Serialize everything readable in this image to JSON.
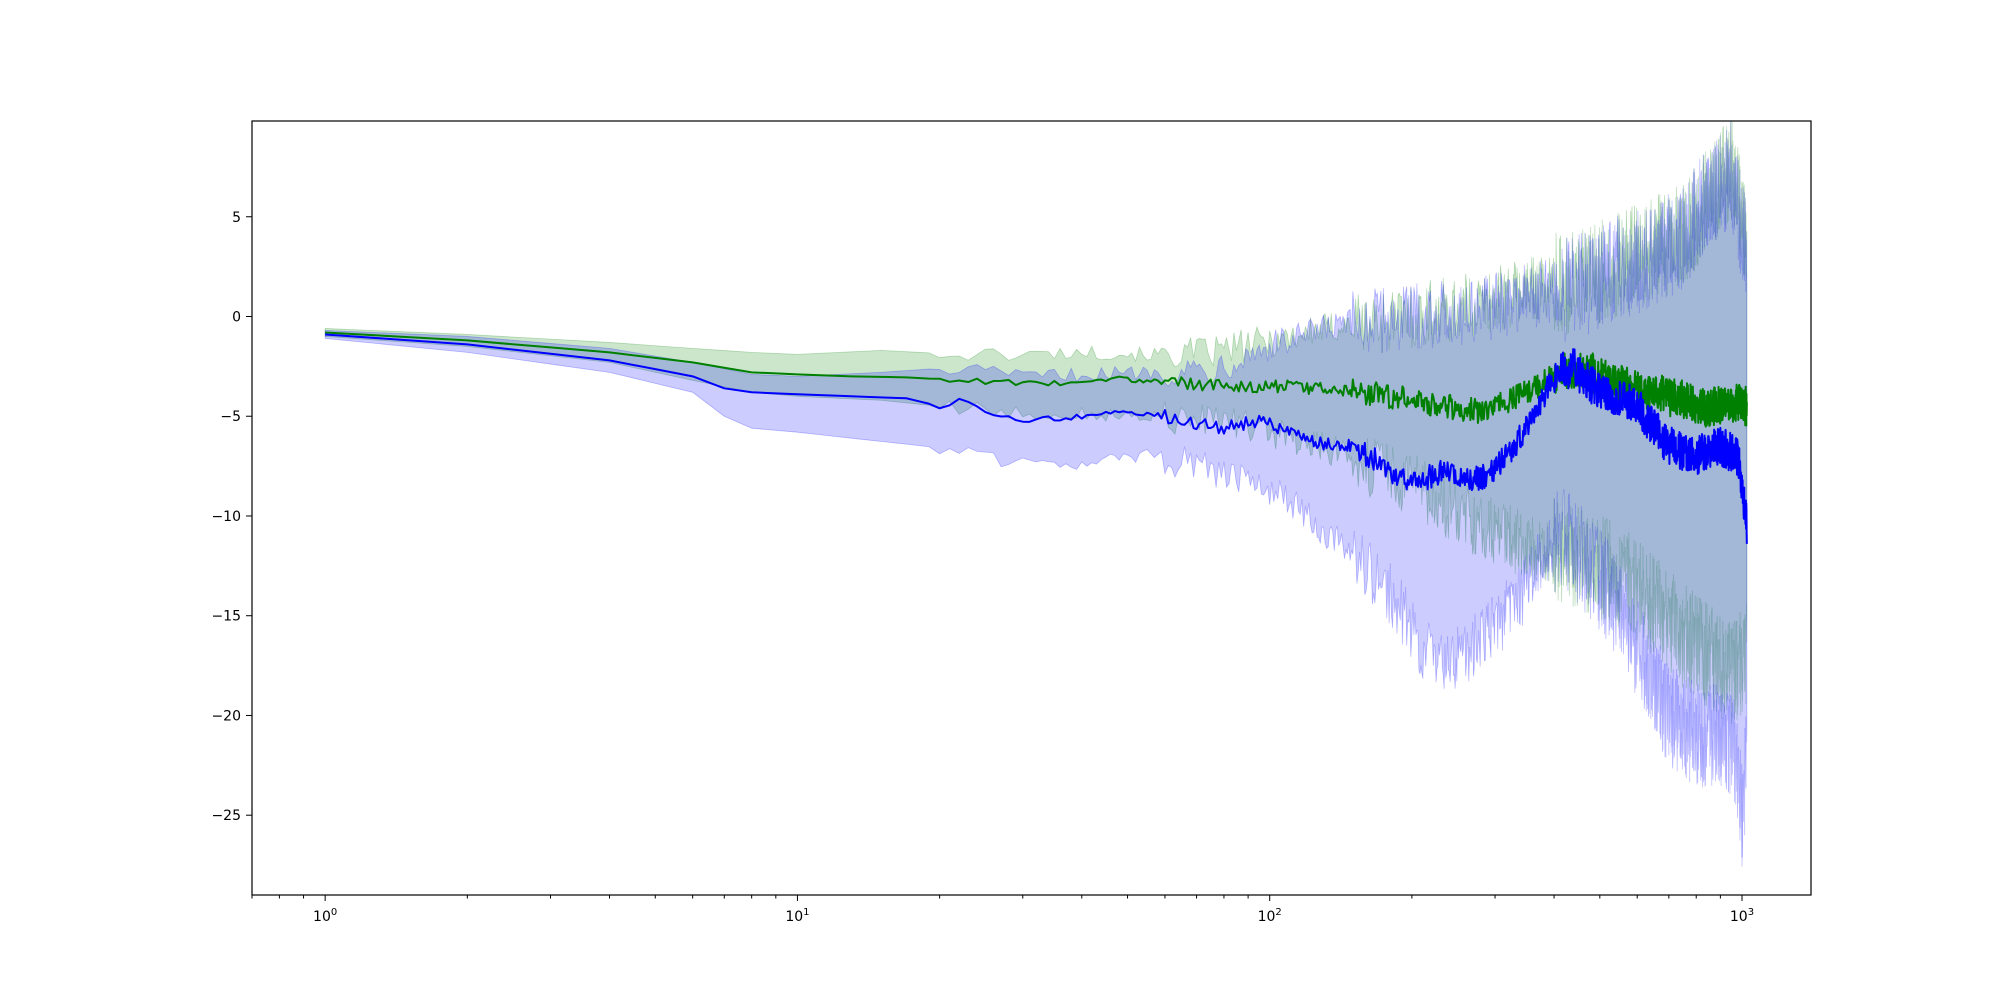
{
  "chart_data": {
    "type": "line",
    "title": "",
    "xlabel": "",
    "ylabel": "",
    "xscale": "log",
    "xlim": [
      0.7,
      1400
    ],
    "ylim": [
      -29,
      9.8
    ],
    "grid": false,
    "legend": "none",
    "x_ticks": [
      {
        "value": 1,
        "base": "10",
        "exp": "0"
      },
      {
        "value": 10,
        "base": "10",
        "exp": "1"
      },
      {
        "value": 100,
        "base": "10",
        "exp": "2"
      },
      {
        "value": 1000,
        "base": "10",
        "exp": "3"
      }
    ],
    "y_ticks": [
      {
        "value": 5,
        "label": "5"
      },
      {
        "value": 0,
        "label": "0"
      },
      {
        "value": -5,
        "label": "−5"
      },
      {
        "value": -10,
        "label": "−10"
      },
      {
        "value": -15,
        "label": "−15"
      },
      {
        "value": -20,
        "label": "−20"
      },
      {
        "value": -25,
        "label": "−25"
      }
    ],
    "series": [
      {
        "key": "green",
        "color": "#008000",
        "band_color": "#008000",
        "band_opacity": 0.2,
        "mean": [
          [
            1,
            -0.8
          ],
          [
            2,
            -1.2
          ],
          [
            4,
            -1.8
          ],
          [
            6,
            -2.3
          ],
          [
            8,
            -2.8
          ],
          [
            10,
            -2.9
          ],
          [
            13,
            -3.0
          ],
          [
            17,
            -3.05
          ],
          [
            22,
            -3.2
          ],
          [
            28,
            -3.3
          ],
          [
            35,
            -3.35
          ],
          [
            43,
            -3.1
          ],
          [
            55,
            -3.2
          ],
          [
            70,
            -3.4
          ],
          [
            90,
            -3.5
          ],
          [
            110,
            -3.5
          ],
          [
            140,
            -3.7
          ],
          [
            170,
            -3.9
          ],
          [
            200,
            -4.2
          ],
          [
            240,
            -4.5
          ],
          [
            280,
            -4.8
          ],
          [
            320,
            -4.3
          ],
          [
            370,
            -3.5
          ],
          [
            420,
            -2.6
          ],
          [
            480,
            -2.8
          ],
          [
            550,
            -3.4
          ],
          [
            650,
            -3.8
          ],
          [
            750,
            -4.2
          ],
          [
            850,
            -4.6
          ],
          [
            950,
            -4.3
          ],
          [
            1024,
            -4.5
          ]
        ],
        "band_upper": [
          [
            1,
            -0.6
          ],
          [
            2,
            -0.9
          ],
          [
            4,
            -1.3
          ],
          [
            6,
            -1.6
          ],
          [
            8,
            -1.8
          ],
          [
            10,
            -1.9
          ],
          [
            15,
            -1.7
          ],
          [
            22,
            -1.9
          ],
          [
            30,
            -1.9
          ],
          [
            40,
            -1.8
          ],
          [
            55,
            -1.9
          ],
          [
            75,
            -1.8
          ],
          [
            100,
            -1.2
          ],
          [
            140,
            -0.5
          ],
          [
            200,
            0.0
          ],
          [
            280,
            0.6
          ],
          [
            350,
            1.4
          ],
          [
            450,
            1.8
          ],
          [
            550,
            2.6
          ],
          [
            650,
            3.4
          ],
          [
            750,
            4.0
          ],
          [
            850,
            6.0
          ],
          [
            950,
            7.5
          ],
          [
            1024,
            4.0
          ]
        ],
        "band_lower": [
          [
            1,
            -1.0
          ],
          [
            2,
            -1.5
          ],
          [
            4,
            -2.3
          ],
          [
            6,
            -3.2
          ],
          [
            8,
            -3.8
          ],
          [
            10,
            -4.0
          ],
          [
            15,
            -4.2
          ],
          [
            22,
            -4.6
          ],
          [
            30,
            -4.8
          ],
          [
            40,
            -4.9
          ],
          [
            55,
            -5.0
          ],
          [
            75,
            -5.2
          ],
          [
            100,
            -5.8
          ],
          [
            140,
            -6.8
          ],
          [
            200,
            -8.5
          ],
          [
            280,
            -10.5
          ],
          [
            350,
            -11.5
          ],
          [
            450,
            -12.0
          ],
          [
            550,
            -13.0
          ],
          [
            650,
            -14.5
          ],
          [
            750,
            -16.0
          ],
          [
            850,
            -17.0
          ],
          [
            950,
            -18.0
          ],
          [
            1024,
            -17.0
          ]
        ]
      },
      {
        "key": "blue",
        "color": "#0000ff",
        "band_color": "#0000ff",
        "band_opacity": 0.2,
        "mean": [
          [
            1,
            -0.9
          ],
          [
            2,
            -1.4
          ],
          [
            4,
            -2.2
          ],
          [
            6,
            -3.0
          ],
          [
            7,
            -3.6
          ],
          [
            8,
            -3.8
          ],
          [
            10,
            -3.9
          ],
          [
            13,
            -4.0
          ],
          [
            17,
            -4.1
          ],
          [
            20,
            -4.5
          ],
          [
            22,
            -4.2
          ],
          [
            25,
            -4.8
          ],
          [
            30,
            -5.3
          ],
          [
            35,
            -5.1
          ],
          [
            40,
            -5.0
          ],
          [
            50,
            -4.8
          ],
          [
            60,
            -5.0
          ],
          [
            70,
            -5.4
          ],
          [
            80,
            -5.6
          ],
          [
            95,
            -5.2
          ],
          [
            110,
            -5.8
          ],
          [
            130,
            -6.4
          ],
          [
            150,
            -6.5
          ],
          [
            170,
            -7.2
          ],
          [
            200,
            -8.5
          ],
          [
            230,
            -7.8
          ],
          [
            260,
            -8.2
          ],
          [
            290,
            -8.0
          ],
          [
            330,
            -6.5
          ],
          [
            370,
            -4.5
          ],
          [
            400,
            -3.0
          ],
          [
            440,
            -2.5
          ],
          [
            480,
            -3.5
          ],
          [
            530,
            -4.0
          ],
          [
            600,
            -4.5
          ],
          [
            700,
            -6.5
          ],
          [
            800,
            -7.0
          ],
          [
            900,
            -6.5
          ],
          [
            980,
            -7.0
          ],
          [
            1024,
            -10.5
          ]
        ],
        "band_upper": [
          [
            1,
            -0.7
          ],
          [
            2,
            -1.0
          ],
          [
            4,
            -1.6
          ],
          [
            6,
            -2.3
          ],
          [
            8,
            -2.9
          ],
          [
            10,
            -3.0
          ],
          [
            15,
            -2.8
          ],
          [
            20,
            -2.6
          ],
          [
            25,
            -2.8
          ],
          [
            30,
            -3.0
          ],
          [
            40,
            -2.9
          ],
          [
            55,
            -2.8
          ],
          [
            75,
            -2.6
          ],
          [
            100,
            -1.5
          ],
          [
            140,
            -0.5
          ],
          [
            200,
            0.0
          ],
          [
            280,
            0.3
          ],
          [
            350,
            1.0
          ],
          [
            450,
            1.5
          ],
          [
            550,
            2.5
          ],
          [
            650,
            3.0
          ],
          [
            750,
            4.0
          ],
          [
            850,
            6.0
          ],
          [
            950,
            7.2
          ],
          [
            1024,
            3.0
          ]
        ],
        "band_lower": [
          [
            1,
            -1.1
          ],
          [
            2,
            -1.8
          ],
          [
            4,
            -2.8
          ],
          [
            6,
            -3.8
          ],
          [
            7,
            -5.0
          ],
          [
            8,
            -5.6
          ],
          [
            10,
            -5.8
          ],
          [
            13,
            -6.1
          ],
          [
            17,
            -6.4
          ],
          [
            22,
            -6.7
          ],
          [
            28,
            -7.4
          ],
          [
            35,
            -7.5
          ],
          [
            45,
            -7.2
          ],
          [
            55,
            -7.0
          ],
          [
            70,
            -7.4
          ],
          [
            85,
            -8.2
          ],
          [
            100,
            -8.6
          ],
          [
            120,
            -10.0
          ],
          [
            150,
            -12.0
          ],
          [
            180,
            -14.0
          ],
          [
            210,
            -16.5
          ],
          [
            240,
            -17.5
          ],
          [
            270,
            -16.5
          ],
          [
            300,
            -15.5
          ],
          [
            340,
            -14.0
          ],
          [
            380,
            -12.0
          ],
          [
            420,
            -11.0
          ],
          [
            470,
            -12.5
          ],
          [
            530,
            -14.0
          ],
          [
            600,
            -16.5
          ],
          [
            700,
            -20.0
          ],
          [
            800,
            -21.0
          ],
          [
            900,
            -21.0
          ],
          [
            960,
            -21.5
          ],
          [
            1000,
            -25.0
          ],
          [
            1024,
            -22.0
          ]
        ]
      }
    ]
  }
}
